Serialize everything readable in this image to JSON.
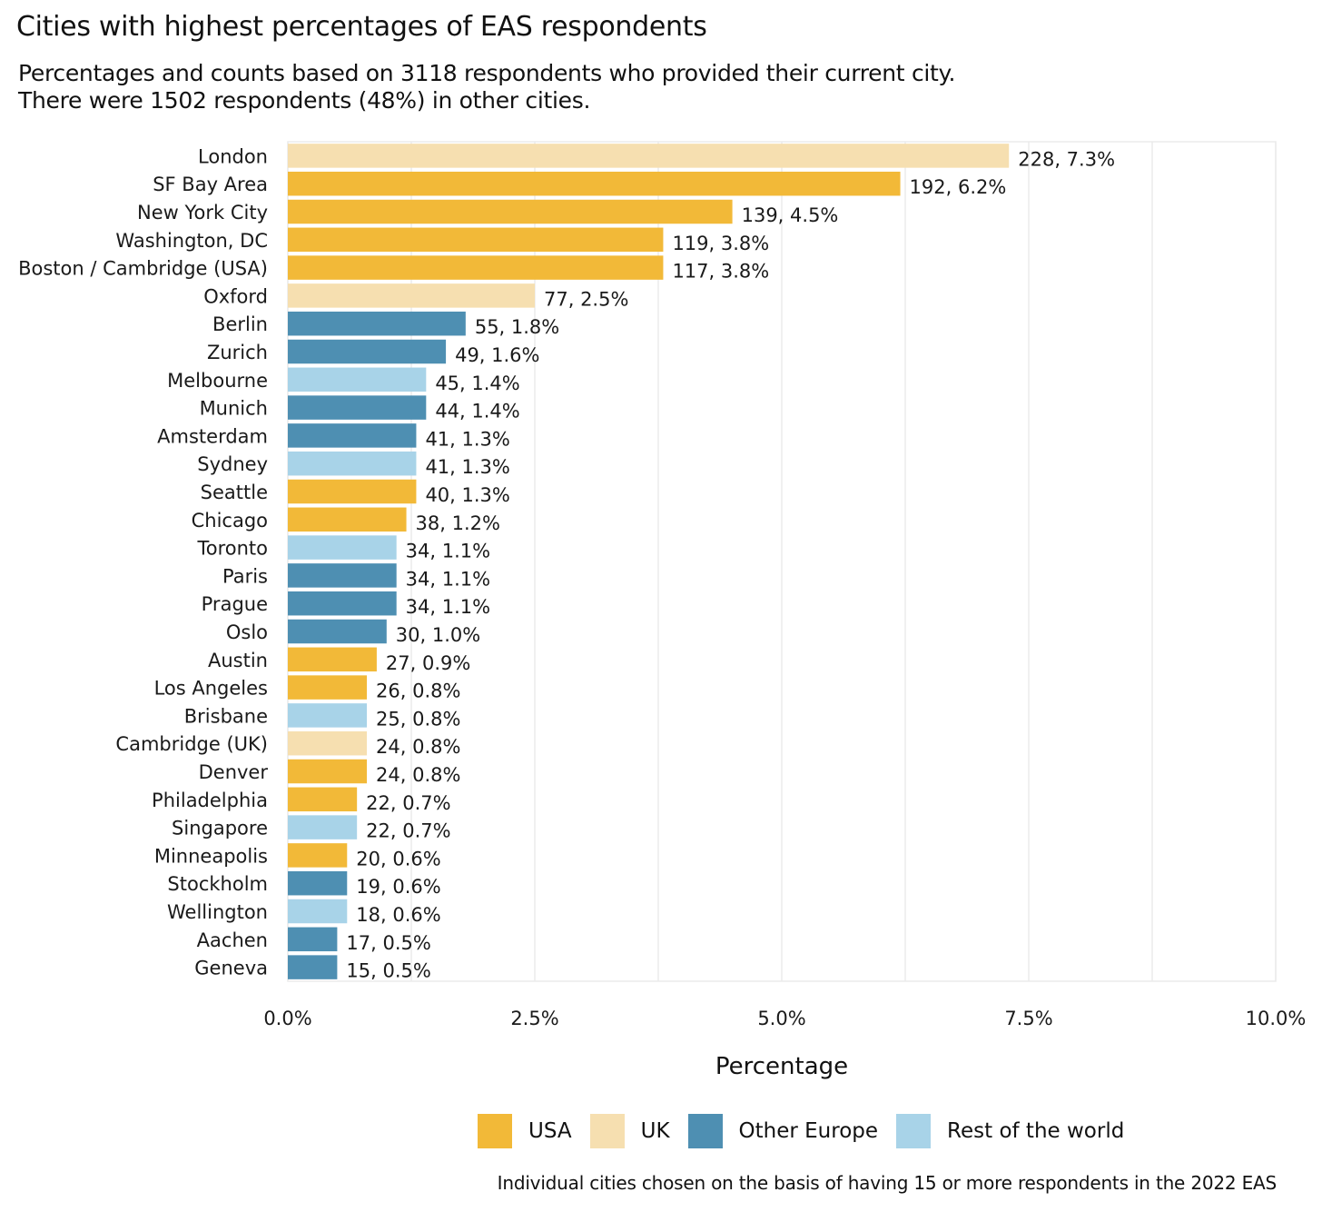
{
  "title": "Cities with highest percentages of EAS respondents",
  "subtitle_line1": "Percentages and counts based on 3118 respondents who provided their current city.",
  "subtitle_line2": "There were 1502 respondents (48%) in other cities.",
  "caption": "Individual cities chosen on the basis of having 15 or more respondents in the 2022 EAS",
  "colors": {
    "USA": "#f2b938",
    "UK": "#f6dfb0",
    "Other Europe": "#4e8fb2",
    "Rest of the world": "#a8d3e8",
    "grid": "#ebebeb"
  },
  "legend": [
    {
      "key": "USA",
      "label": "USA"
    },
    {
      "key": "UK",
      "label": "UK"
    },
    {
      "key": "Other Europe",
      "label": "Other Europe"
    },
    {
      "key": "Rest of the world",
      "label": "Rest of the world"
    }
  ],
  "chart_data": {
    "type": "bar",
    "orientation": "horizontal",
    "xlabel": "Percentage",
    "xlim": [
      0,
      10
    ],
    "xticks": [
      0,
      2.5,
      5,
      7.5,
      10
    ],
    "xtick_labels": [
      "0.0%",
      "2.5%",
      "5.0%",
      "7.5%",
      "10.0%"
    ],
    "legend_position": "bottom",
    "grid": true,
    "categories": [
      "London",
      "SF Bay Area",
      "New York City",
      "Washington, DC",
      "Boston / Cambridge (USA)",
      "Oxford",
      "Berlin",
      "Zurich",
      "Melbourne",
      "Munich",
      "Amsterdam",
      "Sydney",
      "Seattle",
      "Chicago",
      "Toronto",
      "Paris",
      "Prague",
      "Oslo",
      "Austin",
      "Los Angeles",
      "Brisbane",
      "Cambridge (UK)",
      "Denver",
      "Philadelphia",
      "Singapore",
      "Minneapolis",
      "Stockholm",
      "Wellington",
      "Aachen",
      "Geneva"
    ],
    "counts": [
      228,
      192,
      139,
      119,
      117,
      77,
      55,
      49,
      45,
      44,
      41,
      41,
      40,
      38,
      34,
      34,
      34,
      30,
      27,
      26,
      25,
      24,
      24,
      22,
      22,
      20,
      19,
      18,
      17,
      15
    ],
    "values": [
      7.3,
      6.2,
      4.5,
      3.8,
      3.8,
      2.5,
      1.8,
      1.6,
      1.4,
      1.4,
      1.3,
      1.3,
      1.3,
      1.2,
      1.1,
      1.1,
      1.1,
      1.0,
      0.9,
      0.8,
      0.8,
      0.8,
      0.8,
      0.7,
      0.7,
      0.6,
      0.6,
      0.6,
      0.5,
      0.5
    ],
    "regions": [
      "UK",
      "USA",
      "USA",
      "USA",
      "USA",
      "UK",
      "Other Europe",
      "Other Europe",
      "Rest of the world",
      "Other Europe",
      "Other Europe",
      "Rest of the world",
      "USA",
      "USA",
      "Rest of the world",
      "Other Europe",
      "Other Europe",
      "Other Europe",
      "USA",
      "USA",
      "Rest of the world",
      "UK",
      "USA",
      "USA",
      "Rest of the world",
      "USA",
      "Other Europe",
      "Rest of the world",
      "Other Europe",
      "Other Europe"
    ],
    "data_labels": [
      "228, 7.3%",
      "192, 6.2%",
      "139, 4.5%",
      "119, 3.8%",
      "117, 3.8%",
      "77, 2.5%",
      "55, 1.8%",
      "49, 1.6%",
      "45, 1.4%",
      "44, 1.4%",
      "41, 1.3%",
      "41, 1.3%",
      "40, 1.3%",
      "38, 1.2%",
      "34, 1.1%",
      "34, 1.1%",
      "34, 1.1%",
      "30, 1.0%",
      "27, 0.9%",
      "26, 0.8%",
      "25, 0.8%",
      "24, 0.8%",
      "24, 0.8%",
      "22, 0.7%",
      "22, 0.7%",
      "20, 0.6%",
      "19, 0.6%",
      "18, 0.6%",
      "17, 0.5%",
      "15, 0.5%"
    ]
  }
}
